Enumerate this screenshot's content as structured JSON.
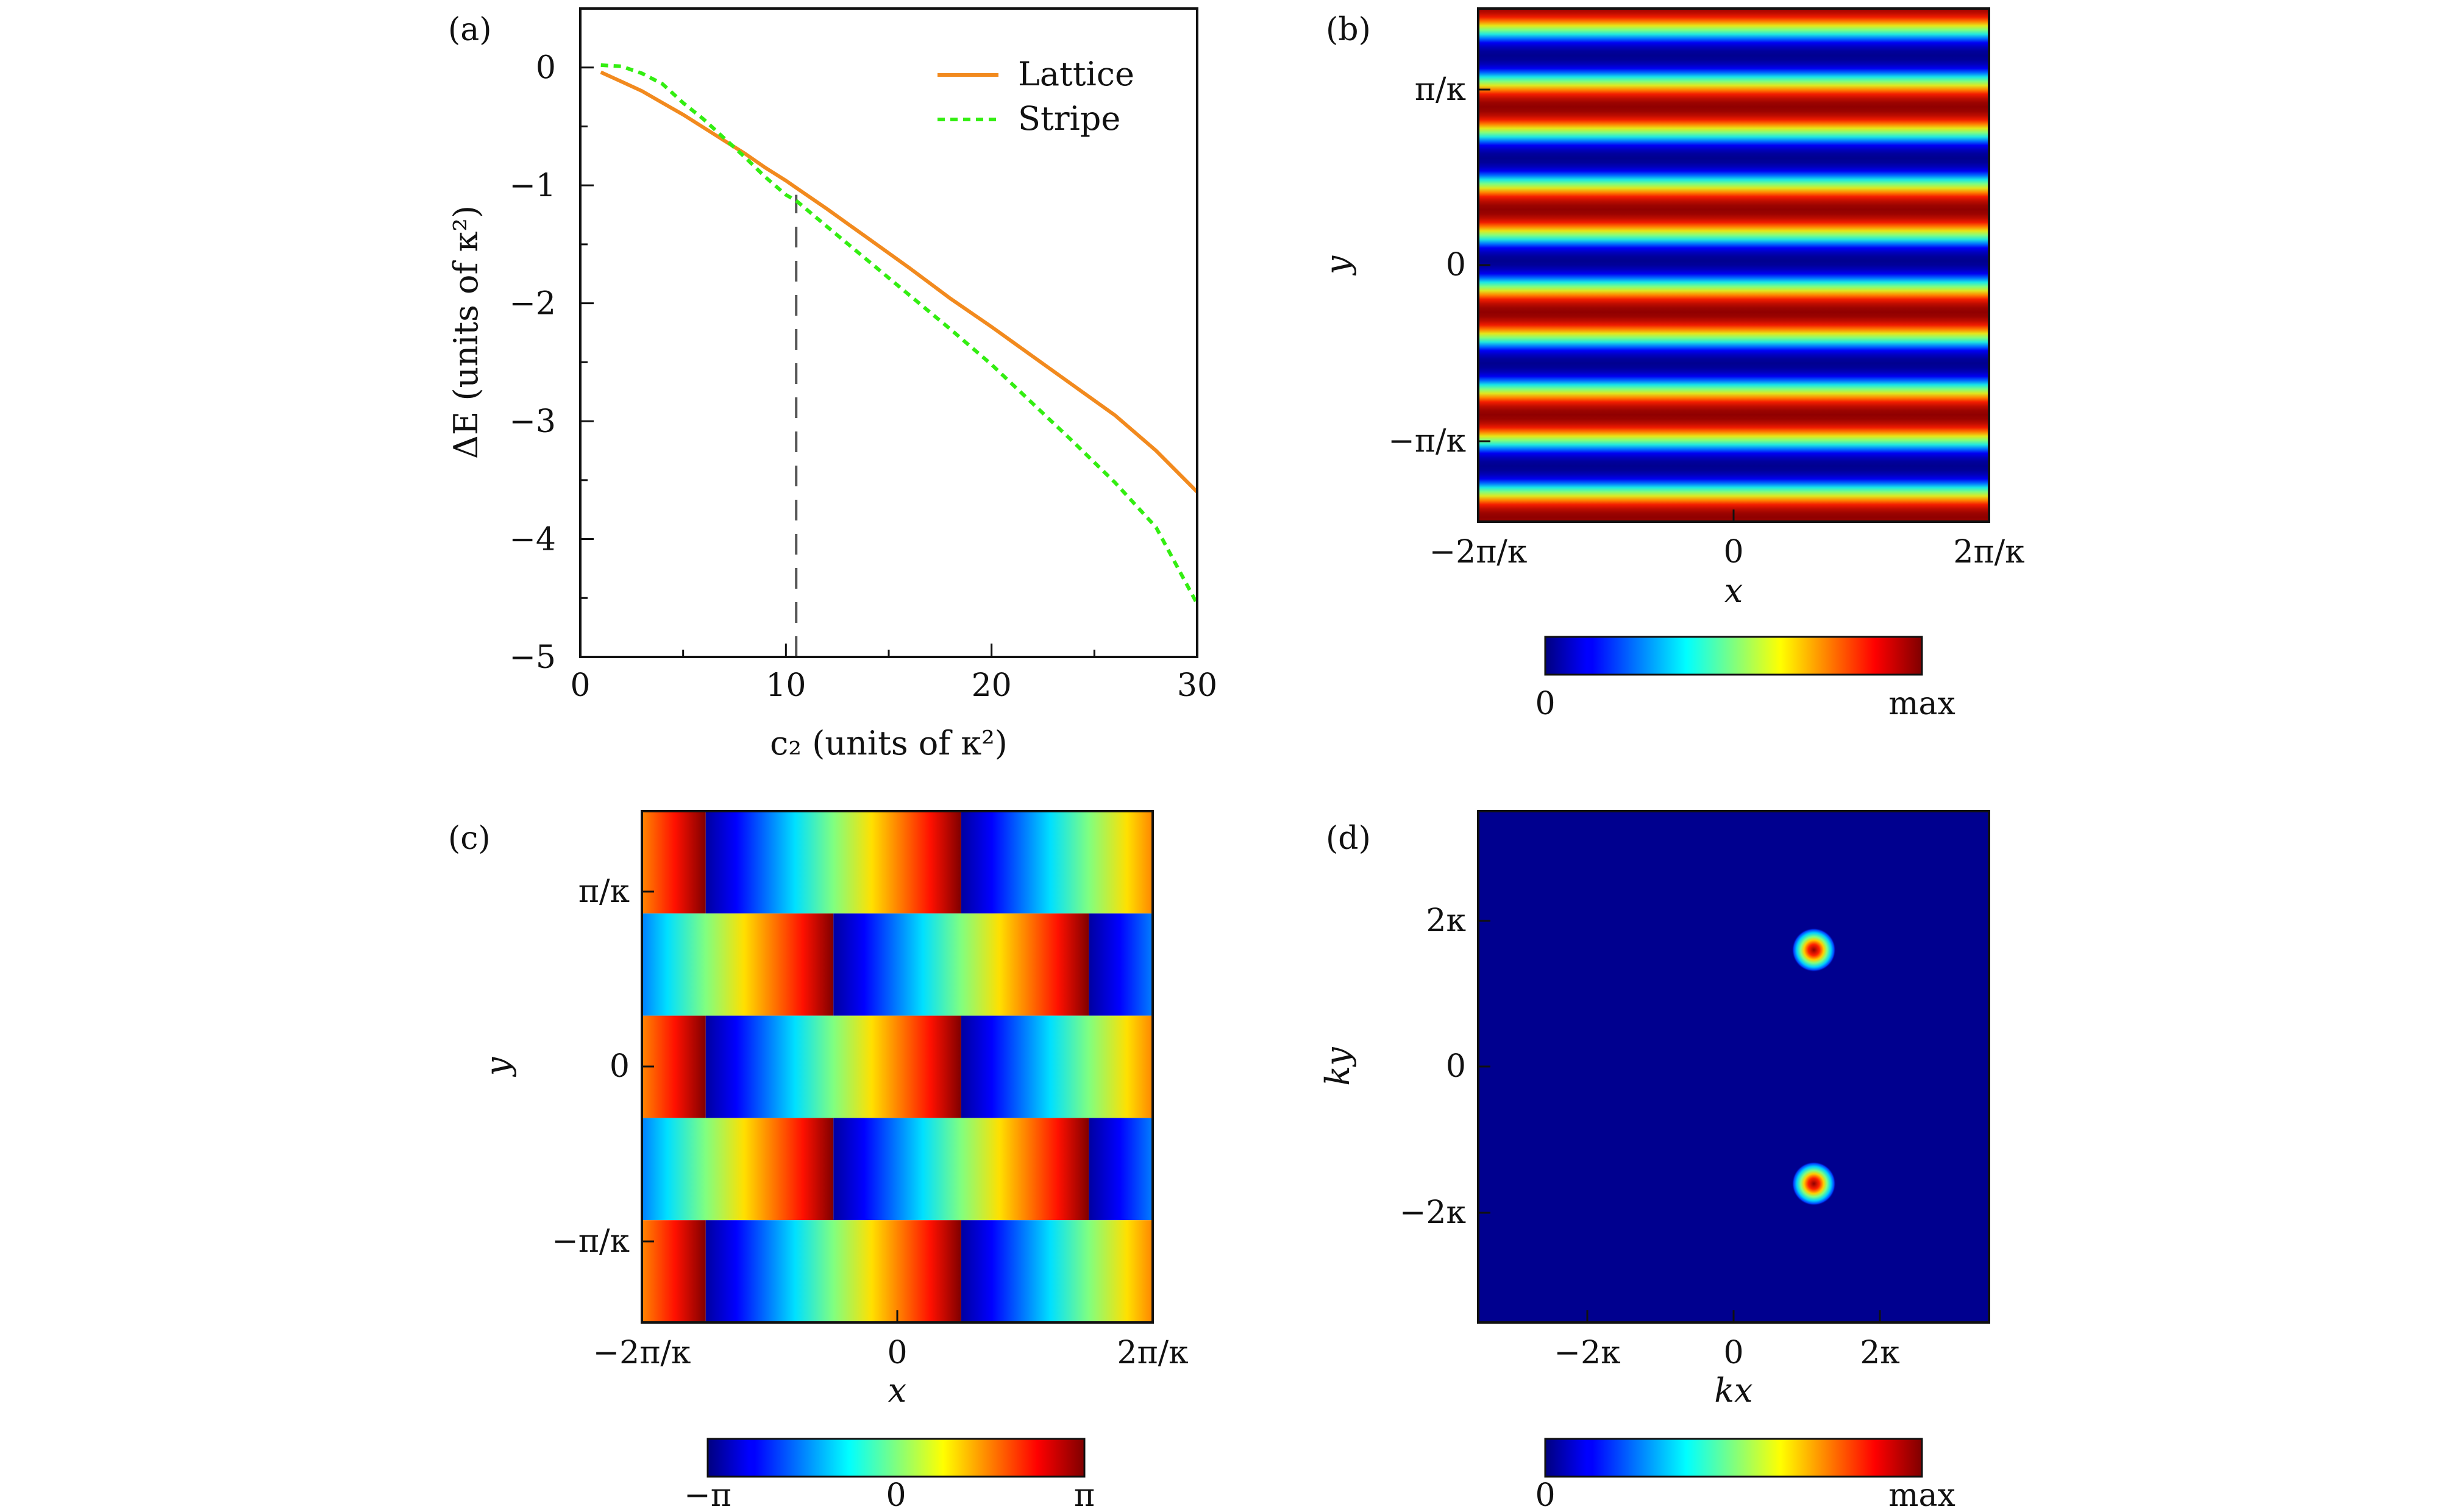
{
  "chart_data": [
    {
      "panel": "(a)",
      "type": "line",
      "xlabel": "c₂ (units of κ²)",
      "ylabel": "ΔE (units of κ²)",
      "xlim": [
        0,
        30
      ],
      "ylim": [
        -5,
        0.5
      ],
      "xticks": [
        0,
        10,
        20,
        30
      ],
      "xtick_labels": [
        "0",
        "10",
        "20",
        "30"
      ],
      "yticks": [
        0,
        -1,
        -2,
        -3,
        -4,
        -5
      ],
      "ytick_labels": [
        "0",
        "−1",
        "−2",
        "−3",
        "−4",
        "−5"
      ],
      "legend_position": "top-right",
      "grid": false,
      "series": [
        {
          "name": "Lattice",
          "color": "#f28a1e",
          "style": "solid",
          "x": [
            1,
            2,
            3,
            4,
            5,
            6,
            7,
            8,
            9,
            10,
            10.5,
            12,
            14,
            16,
            18,
            20,
            22,
            24,
            26,
            28,
            30
          ],
          "y": [
            -0.04,
            -0.12,
            -0.2,
            -0.3,
            -0.4,
            -0.51,
            -0.62,
            -0.73,
            -0.85,
            -0.96,
            -1.02,
            -1.2,
            -1.45,
            -1.7,
            -1.96,
            -2.2,
            -2.45,
            -2.7,
            -2.95,
            -3.25,
            -3.6
          ]
        },
        {
          "name": "Stripe",
          "color": "#33ee11",
          "style": "dotted",
          "x": [
            1,
            2,
            3,
            4,
            5,
            6,
            7,
            8,
            9,
            10,
            10.5,
            12,
            14,
            16,
            18,
            20,
            22,
            24,
            26,
            28,
            30
          ],
          "y": [
            0.02,
            0.01,
            -0.05,
            -0.14,
            -0.3,
            -0.44,
            -0.6,
            -0.76,
            -0.93,
            -1.08,
            -1.13,
            -1.35,
            -1.64,
            -1.93,
            -2.22,
            -2.52,
            -2.85,
            -3.18,
            -3.52,
            -3.9,
            -4.55
          ]
        }
      ],
      "annotation": {
        "type": "vertical-dashed-line",
        "x": 10.5,
        "y_range": [
          -5,
          -1.08
        ]
      }
    },
    {
      "panel": "(b)",
      "type": "heatmap",
      "description_pattern": "horizontal stripes",
      "xlabel": "x",
      "ylabel": "y",
      "xtick_labels": [
        "−2π/κ",
        "0",
        "2π/κ"
      ],
      "ytick_labels": [
        "π/κ",
        "0",
        "−π/κ"
      ],
      "colorbar": {
        "min_label": "0",
        "max_label": "max",
        "colormap": "jet"
      },
      "stripe_periods_in_y": 5
    },
    {
      "panel": "(c)",
      "type": "heatmap",
      "description_pattern": "phase checkerboard",
      "xlabel": "x",
      "ylabel": "y",
      "xtick_labels": [
        "−2π/κ",
        "0",
        "2π/κ"
      ],
      "ytick_labels": [
        "π/κ",
        "0",
        "−π/κ"
      ],
      "colorbar": {
        "min_label": "−π",
        "mid_label": "0",
        "max_label": "π",
        "colormap": "jet"
      },
      "rows": 5,
      "phase_periods_in_x": 2
    },
    {
      "panel": "(d)",
      "type": "heatmap",
      "description_pattern": "momentum distribution peaks",
      "xlabel": "kx",
      "ylabel": "ky",
      "xtick_labels": [
        "−2κ",
        "0",
        "2κ"
      ],
      "ytick_labels": [
        "2κ",
        "0",
        "−2κ"
      ],
      "colorbar": {
        "min_label": "0",
        "max_label": "max",
        "colormap": "jet"
      },
      "peaks": [
        {
          "kx": 1.1,
          "ky": 1.6
        },
        {
          "kx": 1.1,
          "ky": -1.6
        }
      ],
      "k_range": [
        -3.5,
        3.5
      ]
    }
  ]
}
